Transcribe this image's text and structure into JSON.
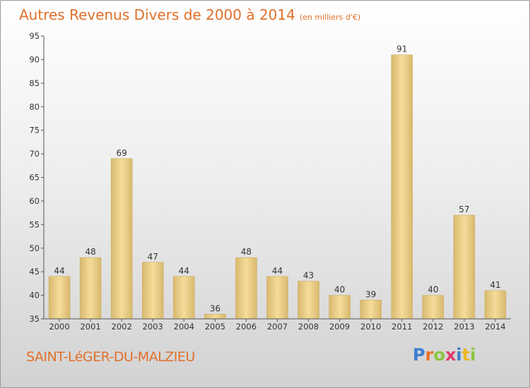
{
  "title": "Autres Revenus Divers de 2000 à 2014",
  "unit": "(en milliers d'€)",
  "commune": "SAINT-LéGER-DU-MALZIEU",
  "logo": {
    "text": "Proxiti",
    "letter_colors": [
      "#3a7fd0",
      "#e8702a",
      "#8bc43f",
      "#e23a6a",
      "#3a7fd0",
      "#e8b820",
      "#8bc43f"
    ]
  },
  "colors": {
    "bar_light": "#f5dc9a",
    "bar_dark": "#d8b86e",
    "axis": "#555555",
    "text": "#333333",
    "title": "#e0702a"
  },
  "chart_data": {
    "type": "bar",
    "categories": [
      "2000",
      "2001",
      "2002",
      "2003",
      "2004",
      "2005",
      "2006",
      "2007",
      "2008",
      "2009",
      "2010",
      "2011",
      "2012",
      "2013",
      "2014"
    ],
    "values": [
      44,
      48,
      69,
      47,
      44,
      36,
      48,
      44,
      43,
      40,
      39,
      91,
      40,
      57,
      41
    ],
    "ylim": [
      35,
      95
    ],
    "yticks": [
      35,
      40,
      45,
      50,
      55,
      60,
      65,
      70,
      75,
      80,
      85,
      90,
      95
    ],
    "grid": false
  }
}
